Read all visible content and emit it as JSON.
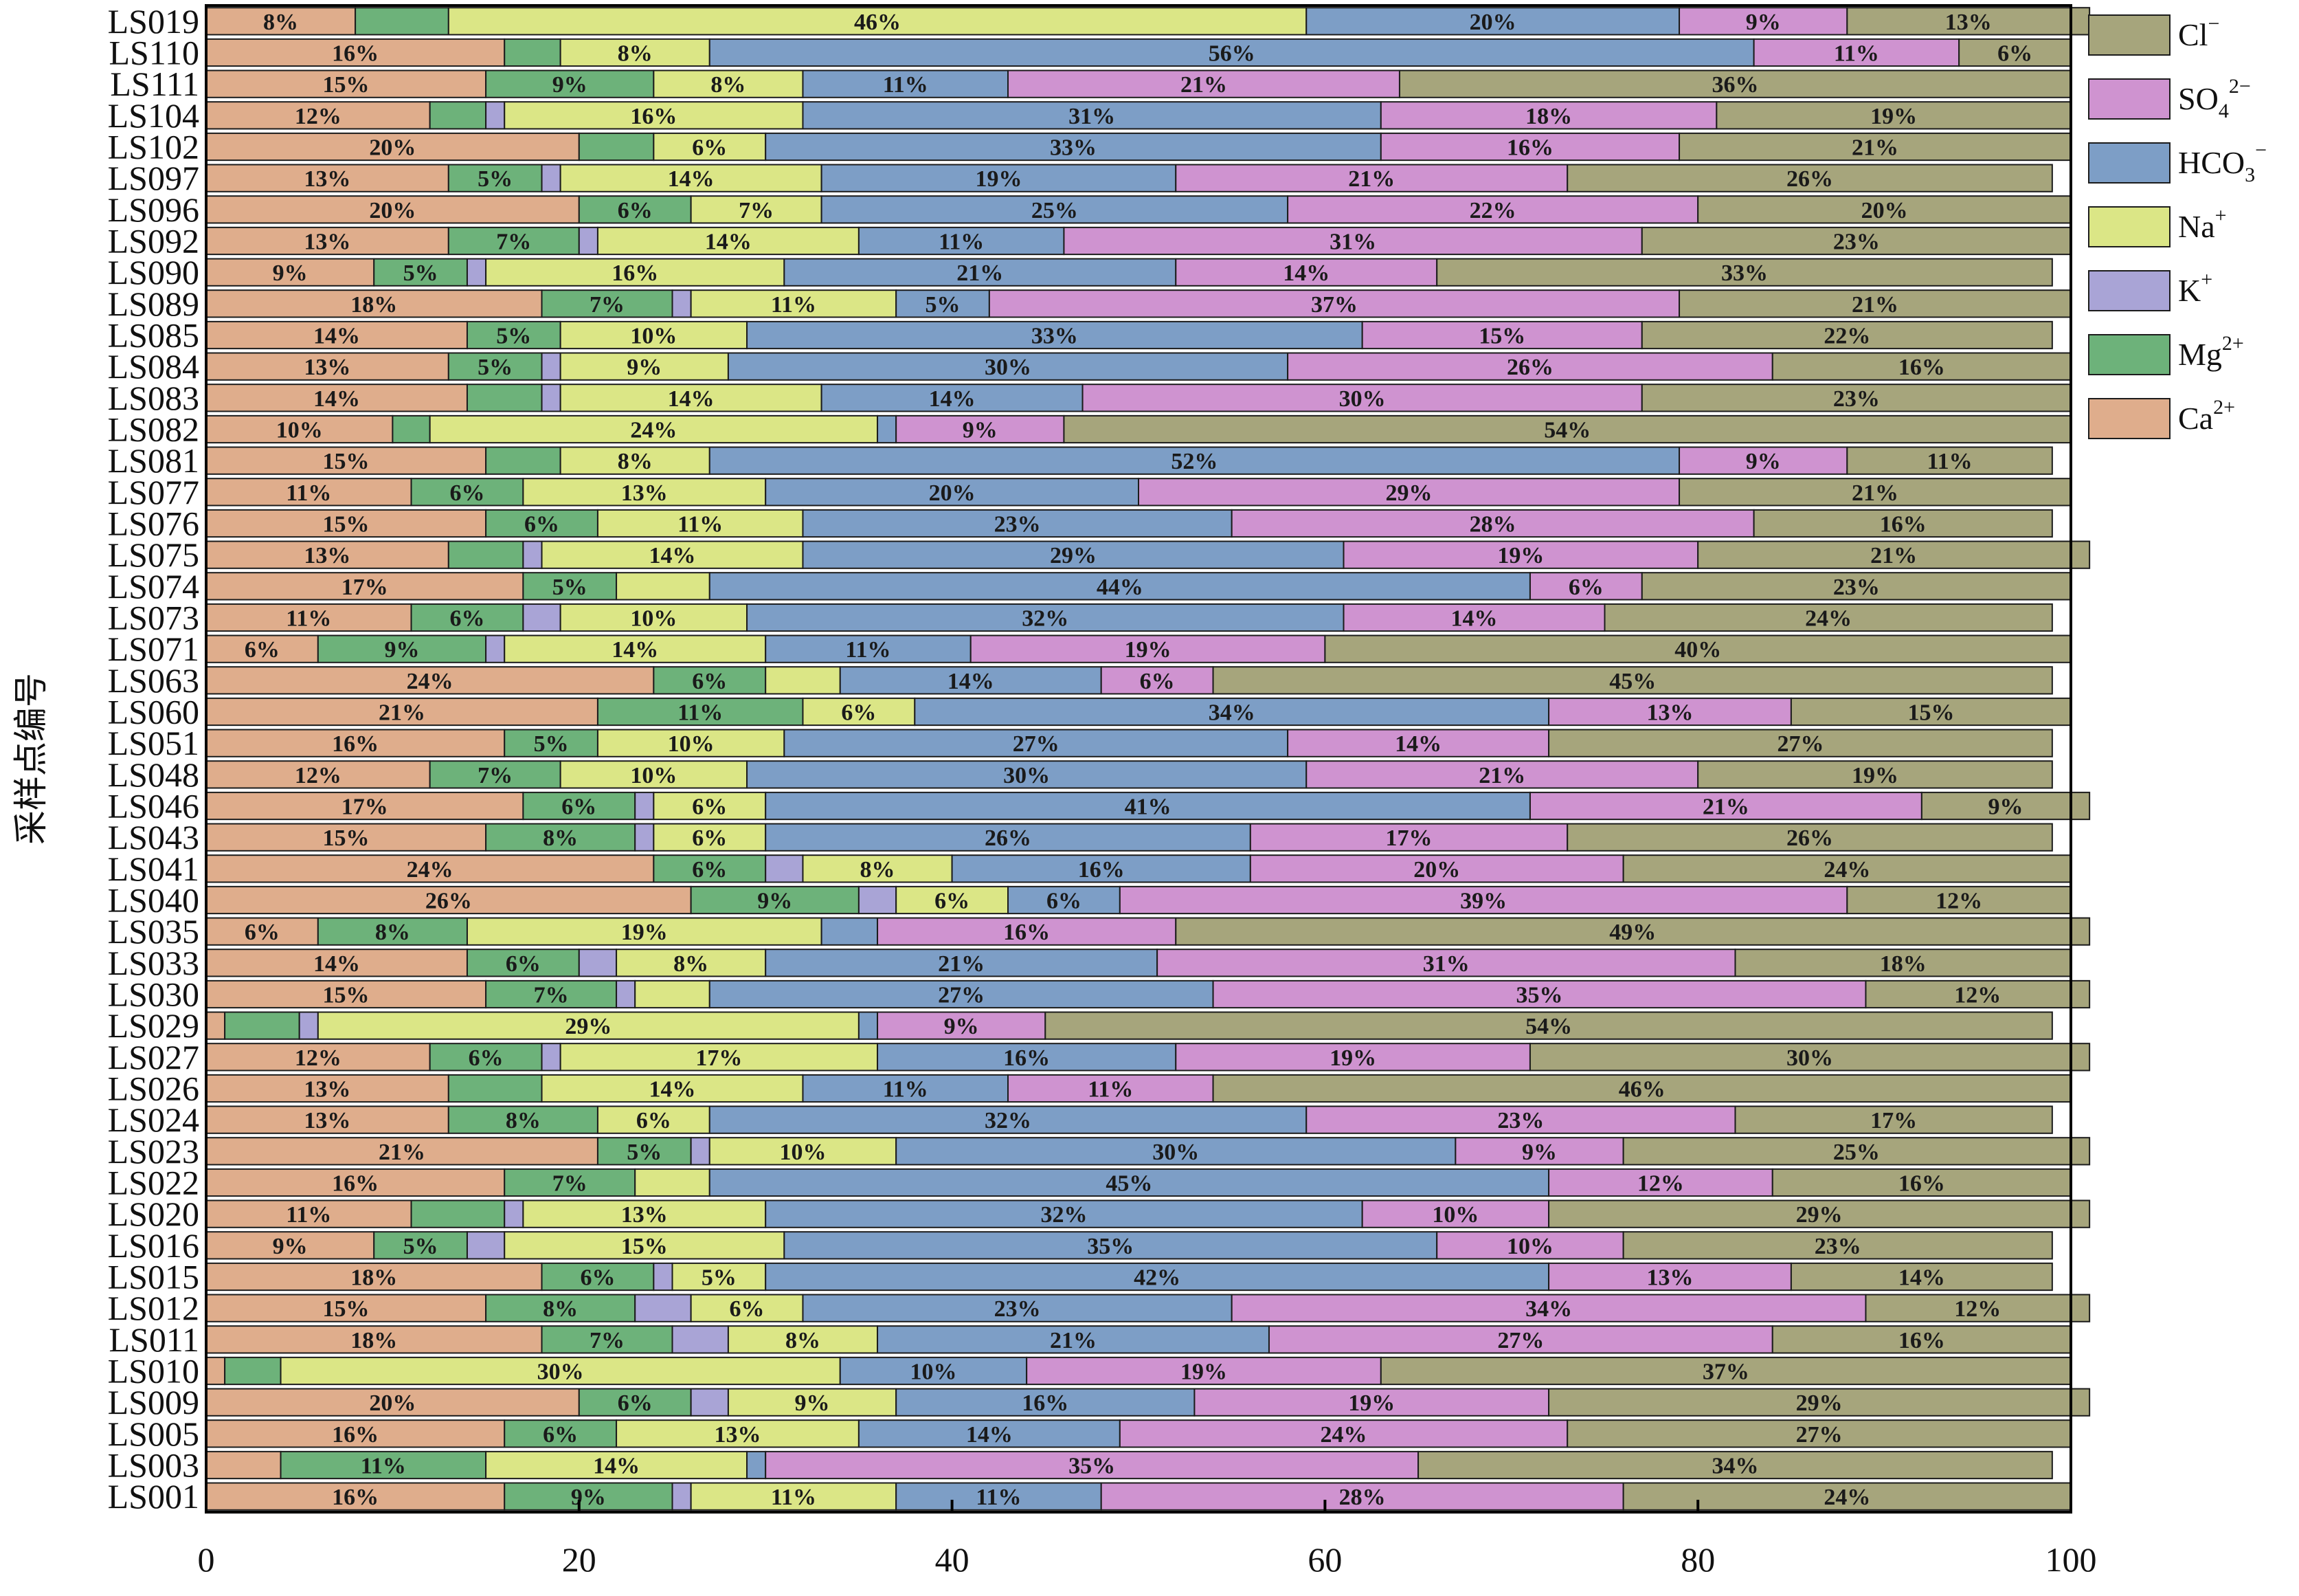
{
  "chart_data": {
    "type": "bar",
    "orientation": "horizontal",
    "stacked": true,
    "title": "",
    "ylabel": "采样点编号",
    "xlabel": "",
    "xlim": [
      0,
      100
    ],
    "xticks": [
      "0",
      "20",
      "40",
      "60",
      "80",
      "100"
    ],
    "legend_position": "right",
    "legend": [
      {
        "key": "Cl",
        "label": "Cl",
        "sup": "−",
        "sub": ""
      },
      {
        "key": "SO4",
        "label": "SO",
        "sub": "4",
        "sup": "2−"
      },
      {
        "key": "HCO3",
        "label": "HCO",
        "sub": "3",
        "sup": "−"
      },
      {
        "key": "Na",
        "label": "Na",
        "sub": "",
        "sup": "+"
      },
      {
        "key": "K",
        "label": "K",
        "sub": "",
        "sup": "+"
      },
      {
        "key": "Mg",
        "label": "Mg",
        "sub": "",
        "sup": "2+"
      },
      {
        "key": "Ca",
        "label": "Ca",
        "sub": "",
        "sup": "2+"
      }
    ],
    "colors": {
      "Ca": "#dfad8c",
      "Mg": "#6db27a",
      "K": "#a9a4d6",
      "Na": "#dbe686",
      "HCO3": "#7d9ec6",
      "SO4": "#cf93d0",
      "Cl": "#a6a57c"
    },
    "series_order": [
      "Ca",
      "Mg",
      "K",
      "Na",
      "HCO3",
      "SO4",
      "Cl"
    ],
    "categories": [
      "LS019",
      "LS110",
      "LS111",
      "LS104",
      "LS102",
      "LS097",
      "LS096",
      "LS092",
      "LS090",
      "LS089",
      "LS085",
      "LS084",
      "LS083",
      "LS082",
      "LS081",
      "LS077",
      "LS076",
      "LS075",
      "LS074",
      "LS073",
      "LS071",
      "LS063",
      "LS060",
      "LS051",
      "LS048",
      "LS046",
      "LS043",
      "LS041",
      "LS040",
      "LS035",
      "LS033",
      "LS030",
      "LS029",
      "LS027",
      "LS026",
      "LS024",
      "LS023",
      "LS022",
      "LS020",
      "LS016",
      "LS015",
      "LS012",
      "LS011",
      "LS010",
      "LS009",
      "LS005",
      "LS003",
      "LS001"
    ],
    "series": [
      {
        "name": "Ca",
        "values": [
          8,
          16,
          15,
          12,
          20,
          13,
          20,
          13,
          9,
          18,
          14,
          13,
          14,
          10,
          15,
          11,
          15,
          13,
          17,
          11,
          6,
          24,
          21,
          16,
          12,
          17,
          15,
          24,
          26,
          6,
          14,
          15,
          1,
          12,
          13,
          13,
          21,
          16,
          11,
          9,
          18,
          15,
          18,
          1,
          20,
          16,
          4,
          16
        ]
      },
      {
        "name": "Mg",
        "values": [
          5,
          3,
          9,
          3,
          4,
          5,
          6,
          7,
          5,
          7,
          5,
          5,
          4,
          2,
          4,
          6,
          6,
          4,
          5,
          6,
          9,
          6,
          11,
          5,
          7,
          6,
          8,
          6,
          9,
          8,
          6,
          7,
          4,
          6,
          5,
          8,
          5,
          7,
          5,
          5,
          6,
          8,
          7,
          3,
          6,
          6,
          11,
          9
        ]
      },
      {
        "name": "K",
        "values": [
          0,
          0,
          0,
          1,
          0,
          1,
          0,
          1,
          1,
          1,
          0,
          1,
          1,
          0,
          0,
          0,
          0,
          1,
          0,
          2,
          1,
          0,
          0,
          0,
          0,
          1,
          1,
          2,
          2,
          0,
          2,
          1,
          1,
          1,
          0,
          0,
          1,
          0,
          1,
          2,
          1,
          3,
          3,
          0,
          2,
          0,
          0,
          1
        ]
      },
      {
        "name": "Na",
        "values": [
          46,
          8,
          8,
          16,
          6,
          14,
          7,
          14,
          16,
          11,
          10,
          9,
          14,
          24,
          8,
          13,
          11,
          14,
          5,
          10,
          14,
          4,
          6,
          10,
          10,
          6,
          6,
          8,
          6,
          19,
          8,
          4,
          29,
          17,
          14,
          6,
          10,
          4,
          13,
          15,
          5,
          6,
          8,
          30,
          9,
          13,
          14,
          11
        ]
      },
      {
        "name": "HCO3",
        "values": [
          20,
          56,
          11,
          31,
          33,
          19,
          25,
          11,
          21,
          5,
          33,
          30,
          14,
          1,
          52,
          20,
          23,
          29,
          44,
          32,
          11,
          14,
          34,
          27,
          30,
          41,
          26,
          16,
          6,
          3,
          21,
          27,
          1,
          16,
          11,
          32,
          30,
          45,
          32,
          35,
          42,
          23,
          21,
          10,
          16,
          14,
          1,
          11
        ]
      },
      {
        "name": "SO4",
        "values": [
          9,
          11,
          21,
          18,
          16,
          21,
          22,
          31,
          14,
          37,
          15,
          26,
          30,
          9,
          9,
          29,
          28,
          19,
          6,
          14,
          19,
          6,
          13,
          14,
          21,
          21,
          17,
          20,
          39,
          16,
          31,
          35,
          9,
          19,
          11,
          23,
          9,
          12,
          10,
          10,
          13,
          34,
          27,
          19,
          19,
          24,
          35,
          28
        ]
      },
      {
        "name": "Cl",
        "values": [
          13,
          6,
          36,
          19,
          21,
          26,
          20,
          23,
          33,
          21,
          22,
          16,
          23,
          54,
          11,
          21,
          16,
          21,
          23,
          24,
          40,
          45,
          15,
          27,
          19,
          9,
          26,
          24,
          12,
          49,
          18,
          12,
          54,
          30,
          46,
          17,
          25,
          16,
          29,
          23,
          14,
          12,
          16,
          37,
          29,
          27,
          34,
          24
        ]
      }
    ],
    "bar_labels": {
      "Ca": [
        8,
        16,
        15,
        12,
        20,
        13,
        20,
        13,
        9,
        18,
        14,
        13,
        14,
        10,
        15,
        11,
        15,
        13,
        17,
        11,
        6,
        24,
        21,
        16,
        12,
        17,
        15,
        24,
        26,
        6,
        14,
        15,
        null,
        12,
        13,
        13,
        21,
        16,
        11,
        9,
        18,
        15,
        18,
        null,
        20,
        16,
        null,
        16
      ],
      "Mg": [
        null,
        null,
        9,
        null,
        null,
        5,
        6,
        7,
        5,
        7,
        5,
        5,
        null,
        null,
        null,
        6,
        6,
        null,
        5,
        6,
        9,
        6,
        11,
        5,
        7,
        6,
        8,
        6,
        9,
        8,
        6,
        7,
        null,
        6,
        null,
        8,
        5,
        7,
        null,
        5,
        6,
        8,
        7,
        null,
        6,
        6,
        11,
        9
      ],
      "K": [
        null,
        null,
        null,
        null,
        null,
        null,
        null,
        null,
        null,
        null,
        null,
        null,
        null,
        null,
        null,
        null,
        null,
        null,
        null,
        null,
        null,
        null,
        null,
        null,
        null,
        null,
        null,
        null,
        null,
        null,
        null,
        null,
        null,
        null,
        null,
        null,
        null,
        null,
        null,
        null,
        null,
        null,
        null,
        null,
        null,
        null,
        null,
        null
      ],
      "Na": [
        46,
        8,
        8,
        16,
        6,
        14,
        7,
        14,
        16,
        11,
        10,
        9,
        14,
        24,
        8,
        13,
        11,
        14,
        null,
        10,
        14,
        null,
        6,
        10,
        10,
        6,
        6,
        8,
        6,
        19,
        8,
        null,
        29,
        17,
        14,
        6,
        10,
        null,
        13,
        15,
        5,
        6,
        8,
        30,
        9,
        13,
        14,
        11
      ],
      "HCO3": [
        20,
        56,
        11,
        31,
        33,
        19,
        25,
        11,
        21,
        5,
        33,
        30,
        14,
        null,
        52,
        20,
        23,
        29,
        44,
        32,
        11,
        14,
        34,
        27,
        30,
        41,
        26,
        16,
        6,
        null,
        21,
        27,
        null,
        16,
        11,
        32,
        30,
        45,
        32,
        35,
        42,
        23,
        21,
        10,
        16,
        14,
        null,
        11
      ],
      "SO4": [
        9,
        11,
        21,
        18,
        16,
        21,
        22,
        31,
        14,
        37,
        15,
        26,
        30,
        9,
        9,
        29,
        28,
        19,
        6,
        14,
        19,
        6,
        13,
        14,
        21,
        21,
        17,
        20,
        39,
        16,
        31,
        35,
        9,
        19,
        11,
        23,
        9,
        12,
        10,
        10,
        13,
        34,
        27,
        19,
        19,
        24,
        35,
        28
      ],
      "Cl": [
        13,
        6,
        36,
        19,
        21,
        26,
        20,
        23,
        33,
        21,
        22,
        16,
        23,
        54,
        11,
        21,
        16,
        21,
        23,
        24,
        40,
        45,
        15,
        27,
        19,
        9,
        26,
        24,
        12,
        49,
        18,
        12,
        54,
        30,
        46,
        17,
        25,
        16,
        29,
        23,
        14,
        12,
        16,
        37,
        29,
        27,
        34,
        24
      ]
    }
  }
}
